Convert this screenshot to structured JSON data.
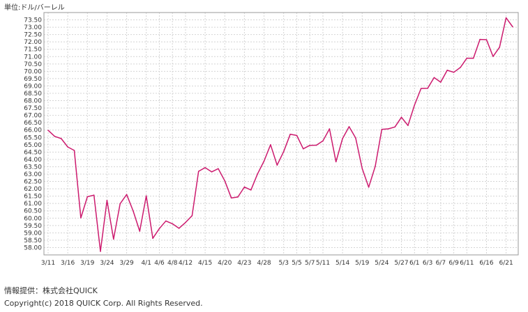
{
  "chart_data": {
    "type": "line",
    "unit_label": "単位:ドル/バーレル",
    "ylim": [
      57.5,
      74.0
    ],
    "y_tick_step": 0.5,
    "y_ticks": [
      "58.00",
      "58.50",
      "59.00",
      "59.50",
      "60.00",
      "60.50",
      "61.00",
      "61.50",
      "62.00",
      "62.50",
      "63.00",
      "63.50",
      "64.00",
      "64.50",
      "65.00",
      "65.50",
      "66.00",
      "66.50",
      "67.00",
      "67.50",
      "68.00",
      "68.50",
      "69.00",
      "69.50",
      "70.00",
      "70.50",
      "71.00",
      "71.50",
      "72.00",
      "72.50",
      "73.00",
      "73.50"
    ],
    "x_tick_labels": [
      {
        "label": "3/11",
        "i": 0
      },
      {
        "label": "3/16",
        "i": 3
      },
      {
        "label": "3/19",
        "i": 6
      },
      {
        "label": "3/24",
        "i": 9
      },
      {
        "label": "3/29",
        "i": 12
      },
      {
        "label": "4/1",
        "i": 15
      },
      {
        "label": "4/6",
        "i": 17
      },
      {
        "label": "4/8",
        "i": 19
      },
      {
        "label": "4/12",
        "i": 21
      },
      {
        "label": "4/15",
        "i": 24
      },
      {
        "label": "4/20",
        "i": 27
      },
      {
        "label": "4/23",
        "i": 30
      },
      {
        "label": "4/28",
        "i": 33
      },
      {
        "label": "5/3",
        "i": 36
      },
      {
        "label": "5/5",
        "i": 38
      },
      {
        "label": "5/7",
        "i": 40
      },
      {
        "label": "5/11",
        "i": 42
      },
      {
        "label": "5/14",
        "i": 45
      },
      {
        "label": "5/19",
        "i": 48
      },
      {
        "label": "5/24",
        "i": 51
      },
      {
        "label": "5/27",
        "i": 54
      },
      {
        "label": "6/1",
        "i": 56
      },
      {
        "label": "6/3",
        "i": 58
      },
      {
        "label": "6/7",
        "i": 60
      },
      {
        "label": "6/9",
        "i": 62
      },
      {
        "label": "6/11",
        "i": 64
      },
      {
        "label": "6/16",
        "i": 67
      },
      {
        "label": "6/21",
        "i": 70
      }
    ],
    "grid": true,
    "legend": "none",
    "series": [
      {
        "color": "#cc1a6e",
        "values": [
          65.98,
          65.57,
          65.42,
          64.85,
          64.61,
          60.02,
          61.46,
          61.57,
          57.74,
          61.21,
          58.57,
          60.98,
          61.61,
          60.49,
          59.11,
          61.52,
          58.63,
          59.29,
          59.81,
          59.62,
          59.31,
          59.71,
          60.17,
          63.19,
          63.44,
          63.15,
          63.37,
          62.54,
          61.38,
          61.44,
          62.12,
          61.92,
          63.01,
          63.88,
          65.0,
          63.61,
          64.53,
          65.71,
          65.63,
          64.72,
          64.96,
          64.97,
          65.26,
          66.08,
          63.84,
          65.42,
          66.23,
          65.46,
          63.38,
          62.11,
          63.53,
          66.05,
          66.08,
          66.21,
          66.87,
          66.31,
          67.7,
          68.83,
          68.84,
          69.57,
          69.26,
          70.07,
          69.93,
          70.26,
          70.89,
          70.89,
          72.17,
          72.15,
          71.01,
          71.64,
          73.64,
          73.03
        ]
      }
    ]
  },
  "footer": {
    "source": "情報提供：株式会社QUICK",
    "copyright": "Copyright(c) 2018 QUICK Corp. All Rights Reserved."
  }
}
